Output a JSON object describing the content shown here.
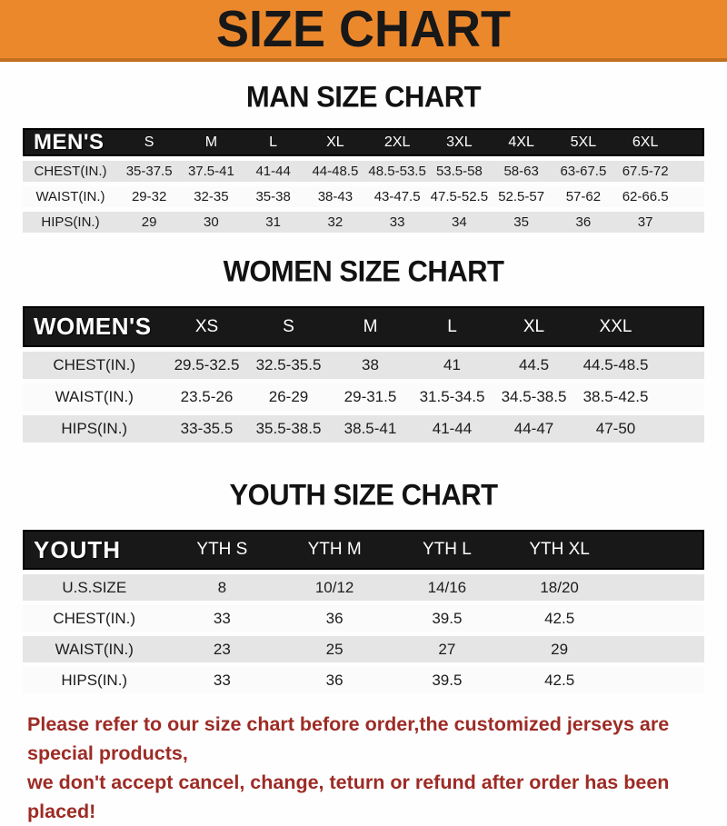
{
  "banner": {
    "title": "SIZE CHART",
    "bg_color": "#ec882c",
    "text_color": "#181818"
  },
  "sections": [
    {
      "id": "men",
      "title": "MAN SIZE CHART",
      "header_label": "MEN'S",
      "columns": [
        "S",
        "M",
        "L",
        "XL",
        "2XL",
        "3XL",
        "4XL",
        "5XL",
        "6XL"
      ],
      "rows": [
        {
          "label": "CHEST(IN.)",
          "values": [
            "35-37.5",
            "37.5-41",
            "41-44",
            "44-48.5",
            "48.5-53.5",
            "53.5-58",
            "58-63",
            "63-67.5",
            "67.5-72"
          ]
        },
        {
          "label": "WAIST(IN.)",
          "values": [
            "29-32",
            "32-35",
            "35-38",
            "38-43",
            "43-47.5",
            "47.5-52.5",
            "52.5-57",
            "57-62",
            "62-66.5"
          ]
        },
        {
          "label": "HIPS(IN.)",
          "values": [
            "29",
            "30",
            "31",
            "32",
            "33",
            "34",
            "35",
            "36",
            "37"
          ]
        }
      ]
    },
    {
      "id": "women",
      "title": "WOMEN SIZE CHART",
      "header_label": "WOMEN'S",
      "columns": [
        "XS",
        "S",
        "M",
        "L",
        "XL",
        "XXL"
      ],
      "rows": [
        {
          "label": "CHEST(IN.)",
          "values": [
            "29.5-32.5",
            "32.5-35.5",
            "38",
            "41",
            "44.5",
            "44.5-48.5"
          ]
        },
        {
          "label": "WAIST(IN.)",
          "values": [
            "23.5-26",
            "26-29",
            "29-31.5",
            "31.5-34.5",
            "34.5-38.5",
            "38.5-42.5"
          ]
        },
        {
          "label": "HIPS(IN.)",
          "values": [
            "33-35.5",
            "35.5-38.5",
            "38.5-41",
            "41-44",
            "44-47",
            "47-50"
          ]
        }
      ]
    },
    {
      "id": "youth",
      "title": "YOUTH SIZE CHART",
      "header_label": "YOUTH",
      "columns": [
        "YTH S",
        "YTH M",
        "YTH L",
        "YTH XL"
      ],
      "rows": [
        {
          "label": "U.S.SIZE",
          "values": [
            "8",
            "10/12",
            "14/16",
            "18/20"
          ]
        },
        {
          "label": "CHEST(IN.)",
          "values": [
            "33",
            "36",
            "39.5",
            "42.5"
          ]
        },
        {
          "label": "WAIST(IN.)",
          "values": [
            "23",
            "25",
            "27",
            "29"
          ]
        },
        {
          "label": "HIPS(IN.)",
          "values": [
            "33",
            "36",
            "39.5",
            "42.5"
          ]
        }
      ]
    }
  ],
  "footer": {
    "text_color": "#9d2b25",
    "line1": "Please refer to our size chart before order,the customized jerseys are special products,",
    "line2": "we don't accept cancel, change, teturn or refund after order has been placed!"
  }
}
